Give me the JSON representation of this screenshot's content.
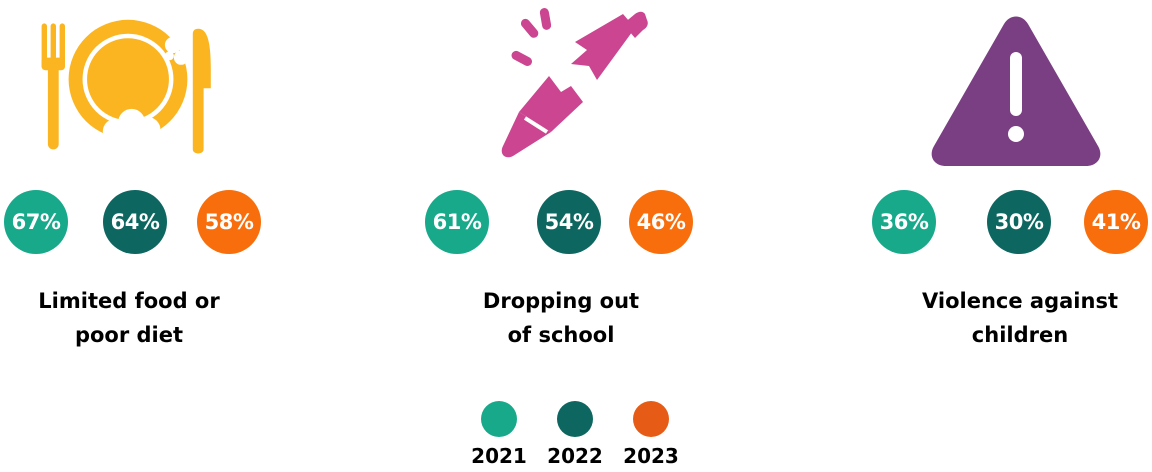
{
  "colors": {
    "teal": "#17a98a",
    "dark_teal": "#0d6660",
    "orange": "#f86e0c",
    "food_icon": "#fbb521",
    "school_icon": "#cb4590",
    "warning_icon": "#7a3e83"
  },
  "icons": {
    "food": "plate-fork-knife-icon",
    "school": "broken-pencil-icon",
    "violence": "warning-triangle-icon"
  },
  "chart_data": {
    "type": "table",
    "title": "",
    "categories": [
      "Limited food or poor diet",
      "Dropping out of school",
      "Violence against children"
    ],
    "series": [
      {
        "name": "2021",
        "values": [
          67,
          61,
          36
        ],
        "labels": [
          "67%",
          "61%",
          "36%"
        ],
        "color": "#17a98a"
      },
      {
        "name": "2022",
        "values": [
          64,
          54,
          30
        ],
        "labels": [
          "64%",
          "54%",
          "30%"
        ],
        "color": "#0d6660"
      },
      {
        "name": "2023",
        "values": [
          58,
          46,
          41
        ],
        "labels": [
          "58%",
          "46%",
          "41%"
        ],
        "color": "#f86e0c"
      }
    ]
  },
  "panels": {
    "food": {
      "caption_line1": "Limited food or",
      "caption_line2": "poor diet"
    },
    "school": {
      "caption_line1": "Dropping out",
      "caption_line2": "of school"
    },
    "violence": {
      "caption_line1": "Violence against",
      "caption_line2": "children"
    }
  },
  "legend": {
    "items": [
      {
        "label": "2021",
        "color": "#17a98a"
      },
      {
        "label": "2022",
        "color": "#0d6660"
      },
      {
        "label": "2023",
        "color": "#f86e0c"
      }
    ]
  }
}
